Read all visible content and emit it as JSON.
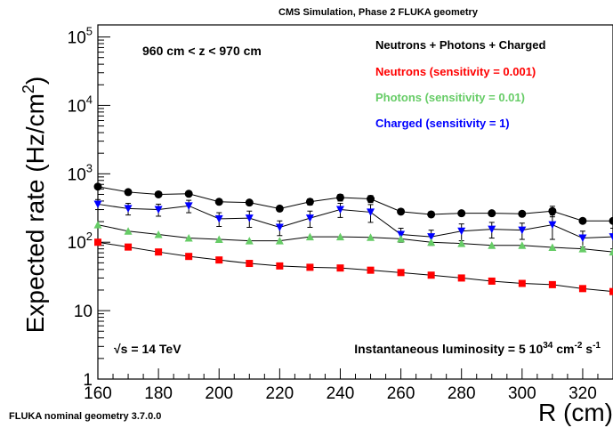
{
  "header": {
    "title": "CMS Simulation, Phase 2 FLUKA geometry"
  },
  "footer": {
    "geometry_note": "FLUKA nominal geometry 3.7.0.0"
  },
  "annotations": {
    "z_range": "960 cm < z < 970 cm",
    "sqrt_s_symbol": "√s",
    "sqrt_s_value": " = 14 TeV",
    "lumi_prefix": "Instantaneous luminosity = 5 10",
    "lumi_exp": "34",
    "lumi_unit_cm": " cm",
    "lumi_unit_cm_exp": "-2",
    "lumi_unit_s": " s",
    "lumi_unit_s_exp": "-1"
  },
  "legend": {
    "title": "Neutrons + Photons + Charged",
    "entries": [
      {
        "label": "Neutrons (sensitivity = 0.001)",
        "color": "#ff0000"
      },
      {
        "label": "Photons (sensitivity = 0.01)",
        "color": "#66cc66"
      },
      {
        "label": "Charged (sensitivity = 1)",
        "color": "#0000ff"
      }
    ]
  },
  "chart_data": {
    "type": "scatter",
    "title": "CMS Simulation, Phase 2 FLUKA geometry",
    "xlabel": "R (cm)",
    "ylabel_prefix": "Expected rate (Hz/cm",
    "ylabel_exp": "2",
    "ylabel_suffix": ")",
    "xlim": [
      160,
      330
    ],
    "ylim": [
      1,
      150000
    ],
    "y_scale": "log",
    "x_ticks": [
      160,
      180,
      200,
      220,
      240,
      260,
      280,
      300,
      320
    ],
    "y_ticks": [
      {
        "value": 1,
        "base": "1",
        "exp": ""
      },
      {
        "value": 10,
        "base": "10",
        "exp": ""
      },
      {
        "value": 100,
        "base": "10",
        "exp": "2"
      },
      {
        "value": 1000,
        "base": "10",
        "exp": "3"
      },
      {
        "value": 10000,
        "base": "10",
        "exp": "4"
      },
      {
        "value": 100000,
        "base": "10",
        "exp": "5"
      }
    ],
    "x": [
      160,
      170,
      180,
      190,
      200,
      210,
      220,
      230,
      240,
      250,
      260,
      270,
      280,
      290,
      300,
      310,
      320,
      330
    ],
    "series": [
      {
        "name": "Neutrons + Photons + Charged",
        "color": "#000000",
        "marker": "circle",
        "values": [
          650,
          540,
          500,
          510,
          390,
          380,
          310,
          390,
          450,
          430,
          280,
          255,
          265,
          265,
          260,
          285,
          205,
          205
        ],
        "errors": [
          0,
          0,
          0,
          0,
          0,
          0,
          0,
          40,
          50,
          50,
          0,
          0,
          0,
          0,
          0,
          50,
          0,
          0
        ]
      },
      {
        "name": "Charged (sensitivity = 1)",
        "color": "#0000ff",
        "marker": "triangle-down",
        "values": [
          360,
          310,
          300,
          340,
          220,
          225,
          165,
          225,
          300,
          275,
          130,
          120,
          145,
          155,
          150,
          180,
          115,
          120
        ],
        "errors": [
          60,
          60,
          60,
          70,
          50,
          60,
          40,
          60,
          70,
          80,
          30,
          30,
          40,
          40,
          40,
          70,
          30,
          40
        ]
      },
      {
        "name": "Photons (sensitivity = 0.01)",
        "color": "#66cc66",
        "marker": "triangle-up",
        "values": [
          180,
          145,
          130,
          115,
          110,
          105,
          105,
          120,
          120,
          118,
          112,
          100,
          96,
          90,
          90,
          84,
          80,
          72
        ],
        "errors": [
          0,
          0,
          0,
          0,
          0,
          0,
          0,
          0,
          0,
          0,
          0,
          0,
          0,
          0,
          0,
          0,
          0,
          0
        ]
      },
      {
        "name": "Neutrons (sensitivity = 0.001)",
        "color": "#ff0000",
        "marker": "square",
        "values": [
          100,
          85,
          72,
          62,
          55,
          49,
          45,
          43,
          42,
          39,
          36,
          33,
          30,
          27,
          25,
          24,
          21,
          19
        ],
        "errors": [
          0,
          0,
          0,
          0,
          0,
          0,
          0,
          0,
          0,
          0,
          0,
          0,
          0,
          0,
          0,
          0,
          0,
          0
        ]
      }
    ]
  }
}
